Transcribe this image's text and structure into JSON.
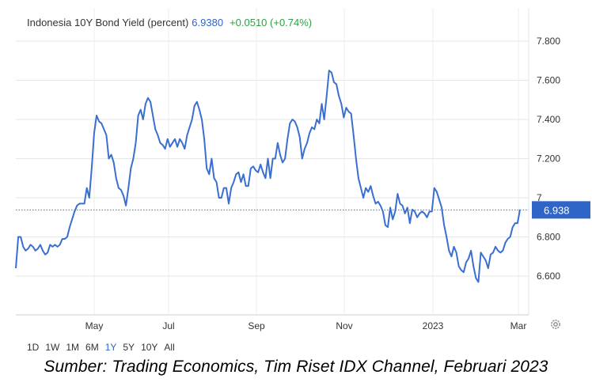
{
  "header": {
    "title": "Indonesia 10Y Bond Yield (percent)",
    "last_value": "6.9380",
    "change": "+0.0510 (+0.74%)"
  },
  "ranges": [
    "1D",
    "1W",
    "1M",
    "6M",
    "1Y",
    "5Y",
    "10Y",
    "All"
  ],
  "active_range": "1Y",
  "settings_icon": "gear-icon",
  "caption": "Sumber: Trading Economics, Tim Riset IDX Channel, Februari 2023",
  "colors": {
    "line": "#3a6fd0",
    "accent": "#2f65c7",
    "positive": "#2ea043",
    "grid": "#e6e6e6"
  },
  "chart_data": {
    "type": "line",
    "series": [
      {
        "values": [
          6.64,
          6.8,
          6.8,
          6.75,
          6.73,
          6.74,
          6.76,
          6.75,
          6.73,
          6.74,
          6.76,
          6.73,
          6.71,
          6.72,
          6.76,
          6.75,
          6.76,
          6.75,
          6.76,
          6.79,
          6.79,
          6.8,
          6.85,
          6.89,
          6.93,
          6.96,
          6.97,
          6.97,
          6.97,
          7.05,
          7.0,
          7.15,
          7.33,
          7.42,
          7.39,
          7.38,
          7.35,
          7.32,
          7.2,
          7.22,
          7.18,
          7.1,
          7.05,
          7.04,
          7.01,
          6.96,
          7.05,
          7.15,
          7.2,
          7.28,
          7.42,
          7.45,
          7.4,
          7.48,
          7.51,
          7.49,
          7.42,
          7.35,
          7.32,
          7.28,
          7.27,
          7.25,
          7.3,
          7.26,
          7.28,
          7.3,
          7.26,
          7.3,
          7.28,
          7.25,
          7.32,
          7.36,
          7.4,
          7.47,
          7.49,
          7.45,
          7.4,
          7.3,
          7.15,
          7.12,
          7.2,
          7.1,
          7.08,
          7.0,
          7.0,
          7.05,
          7.05,
          6.97,
          7.05,
          7.08,
          7.12,
          7.13,
          7.08,
          7.12,
          7.06,
          7.06,
          7.15,
          7.16,
          7.14,
          7.13,
          7.17,
          7.13,
          7.1,
          7.2,
          7.1,
          7.2,
          7.2,
          7.28,
          7.22,
          7.18,
          7.2,
          7.3,
          7.38,
          7.4,
          7.39,
          7.36,
          7.31,
          7.2,
          7.25,
          7.28,
          7.33,
          7.36,
          7.35,
          7.4,
          7.38,
          7.48,
          7.4,
          7.52,
          7.65,
          7.64,
          7.59,
          7.58,
          7.52,
          7.48,
          7.41,
          7.46,
          7.44,
          7.43,
          7.32,
          7.2,
          7.1,
          7.05,
          7.0,
          7.05,
          7.03,
          7.06,
          7.01,
          6.97,
          6.98,
          6.96,
          6.93,
          6.86,
          6.85,
          6.95,
          6.89,
          6.93,
          7.02,
          6.97,
          6.96,
          6.92,
          6.95,
          6.87,
          6.94,
          6.93,
          6.9,
          6.92,
          6.93,
          6.92,
          6.9,
          6.93,
          6.93,
          7.05,
          7.03,
          6.99,
          6.95,
          6.86,
          6.8,
          6.73,
          6.7,
          6.75,
          6.72,
          6.65,
          6.63,
          6.62,
          6.67,
          6.69,
          6.73,
          6.65,
          6.59,
          6.57,
          6.72,
          6.7,
          6.68,
          6.64,
          6.71,
          6.72,
          6.75,
          6.73,
          6.72,
          6.73,
          6.77,
          6.79,
          6.8,
          6.85,
          6.87,
          6.87,
          6.94
        ]
      }
    ],
    "x_tick_labels": [
      "May",
      "Jul",
      "Sep",
      "Nov",
      "2023",
      "Mar"
    ],
    "y_ticks": [
      6.6,
      6.8,
      7.0,
      7.2,
      7.4,
      7.6,
      7.8
    ],
    "y_tick_labels": [
      "6.600",
      "6.800",
      "7",
      "7.200",
      "7.400",
      "7.600",
      "7.800"
    ],
    "ylim": [
      6.4,
      7.88
    ],
    "last_value_label": "6.938",
    "last_value": 6.938,
    "grid": true
  }
}
